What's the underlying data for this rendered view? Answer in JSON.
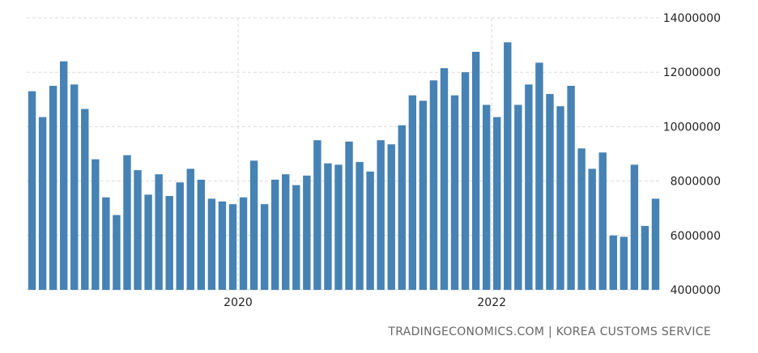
{
  "chart_data": {
    "type": "bar",
    "xlabel": "",
    "ylabel": "",
    "ylim": [
      4000000,
      14000000
    ],
    "yticks": [
      "14000000",
      "12000000",
      "10000000",
      "8000000",
      "6000000",
      "4000000"
    ],
    "x_tick_labels": [
      {
        "label": "2020",
        "index": 19.5
      },
      {
        "label": "2022",
        "index": 43.5
      }
    ],
    "grid": true,
    "legend": "none",
    "bar_color": "#4682b4",
    "values": [
      11300000,
      10350000,
      11500000,
      12400000,
      11550000,
      10650000,
      8800000,
      7400000,
      6750000,
      8950000,
      8400000,
      7500000,
      8250000,
      7450000,
      7950000,
      8450000,
      8050000,
      7350000,
      7250000,
      7150000,
      7400000,
      8750000,
      7150000,
      8050000,
      8250000,
      7850000,
      8200000,
      9500000,
      8650000,
      8600000,
      9450000,
      8700000,
      8350000,
      9500000,
      9350000,
      10050000,
      11150000,
      10950000,
      11700000,
      12150000,
      11150000,
      12000000,
      12750000,
      10800000,
      10350000,
      13100000,
      10800000,
      11550000,
      12350000,
      11200000,
      10750000,
      11500000,
      9200000,
      8450000,
      9050000,
      6000000,
      5950000,
      8600000,
      6350000,
      7350000
    ]
  },
  "source": "TRADINGECONOMICS.COM | KOREA CUSTOMS SERVICE"
}
